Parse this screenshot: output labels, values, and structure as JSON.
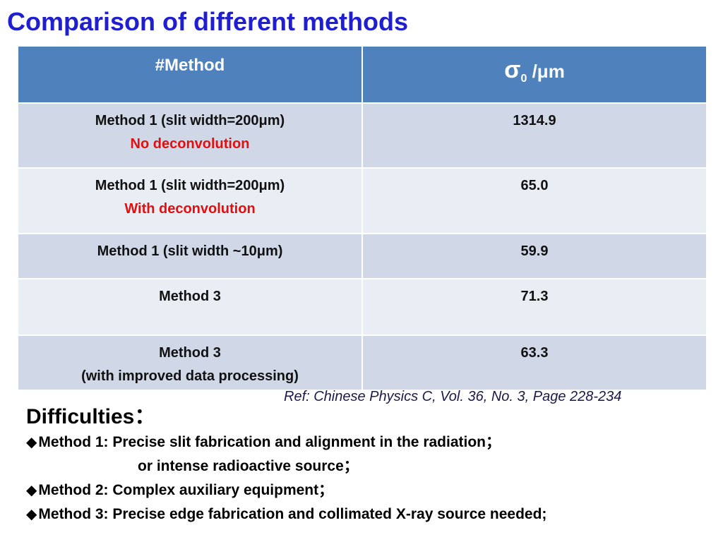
{
  "title": "Comparison  of different methods",
  "table": {
    "header_method": "#Method",
    "header_sigma_symbol": "σ",
    "header_sigma_sub": "0",
    "header_sigma_unit": " /μm",
    "rows": [
      {
        "method": "Method 1 (slit width=200μm)",
        "note": "No deconvolution",
        "value": "1314.9"
      },
      {
        "method": "Method 1 (slit width=200μm)",
        "note": "With deconvolution",
        "value": "65.0"
      },
      {
        "method": "Method 1 (slit width ~10μm)",
        "note": "",
        "value": "59.9"
      },
      {
        "method": "Method  3",
        "note": "",
        "value": "71.3"
      },
      {
        "method": "Method 3",
        "note": "(with improved data processing)",
        "value": "63.3"
      }
    ]
  },
  "reference": "Ref: Chinese Physics C, Vol. 36, No. 3, Page 228-234",
  "difficulties": {
    "title": "Difficulties：",
    "bullet_symbol": "◆",
    "items": [
      "Method 1: Precise slit fabrication and alignment in the  radiation；",
      "or intense radioactive source；",
      "Method 2: Complex auxiliary equipment；",
      "Method 3: Precise edge fabrication and collimated X-ray source  needed;"
    ]
  },
  "colors": {
    "title": "#1f1fcf",
    "header_bg": "#4f81bd",
    "row_odd": "#d0d8e8",
    "row_even": "#e9edf4",
    "highlight_red": "#e01010"
  }
}
